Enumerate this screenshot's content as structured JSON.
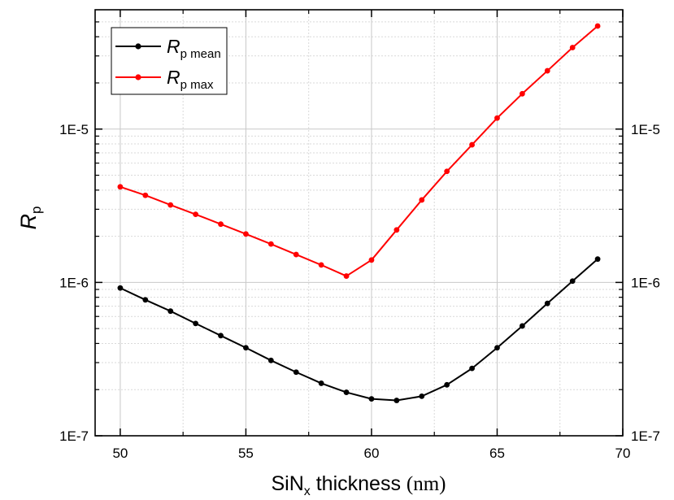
{
  "chart_data": {
    "type": "line",
    "xlabel": {
      "prefix": "SiN",
      "sub": "x",
      "mid": " thickness ",
      "unit": "(nm)"
    },
    "ylabel": {
      "main": "R",
      "sub": "p"
    },
    "xlim": [
      49,
      70
    ],
    "ylim": [
      1e-07,
      6e-05
    ],
    "y_scale": "log",
    "grid": true,
    "mirror_right_axis": true,
    "legend_position": "top-left",
    "x_ticks": [
      50,
      55,
      60,
      65,
      70
    ],
    "x_tick_labels": [
      "50",
      "55",
      "60",
      "65",
      "70"
    ],
    "y_ticks": [
      1e-07,
      1e-06,
      1e-05
    ],
    "y_tick_labels": [
      "1E-7",
      "1E-6",
      "1E-5"
    ],
    "x": [
      50,
      51,
      52,
      53,
      54,
      55,
      56,
      57,
      58,
      59,
      60,
      61,
      62,
      63,
      64,
      65,
      66,
      67,
      68,
      69
    ],
    "series": [
      {
        "name_main": "R",
        "name_sub": "p mean",
        "color": "#000000",
        "values": [
          9.2e-07,
          7.7e-07,
          6.5e-07,
          5.4e-07,
          4.5e-07,
          3.75e-07,
          3.1e-07,
          2.6e-07,
          2.2e-07,
          1.92e-07,
          1.74e-07,
          1.7e-07,
          1.81e-07,
          2.15e-07,
          2.75e-07,
          3.75e-07,
          5.2e-07,
          7.3e-07,
          1.02e-06,
          1.42e-06
        ]
      },
      {
        "name_main": "R",
        "name_sub": "p max",
        "color": "#ff0000",
        "values": [
          4.2e-06,
          3.7e-06,
          3.2e-06,
          2.78e-06,
          2.4e-06,
          2.07e-06,
          1.78e-06,
          1.52e-06,
          1.3e-06,
          1.1e-06,
          1.4e-06,
          2.2e-06,
          3.45e-06,
          5.3e-06,
          7.9e-06,
          1.18e-05,
          1.7e-05,
          2.4e-05,
          3.4e-05,
          4.7e-05
        ]
      }
    ]
  }
}
